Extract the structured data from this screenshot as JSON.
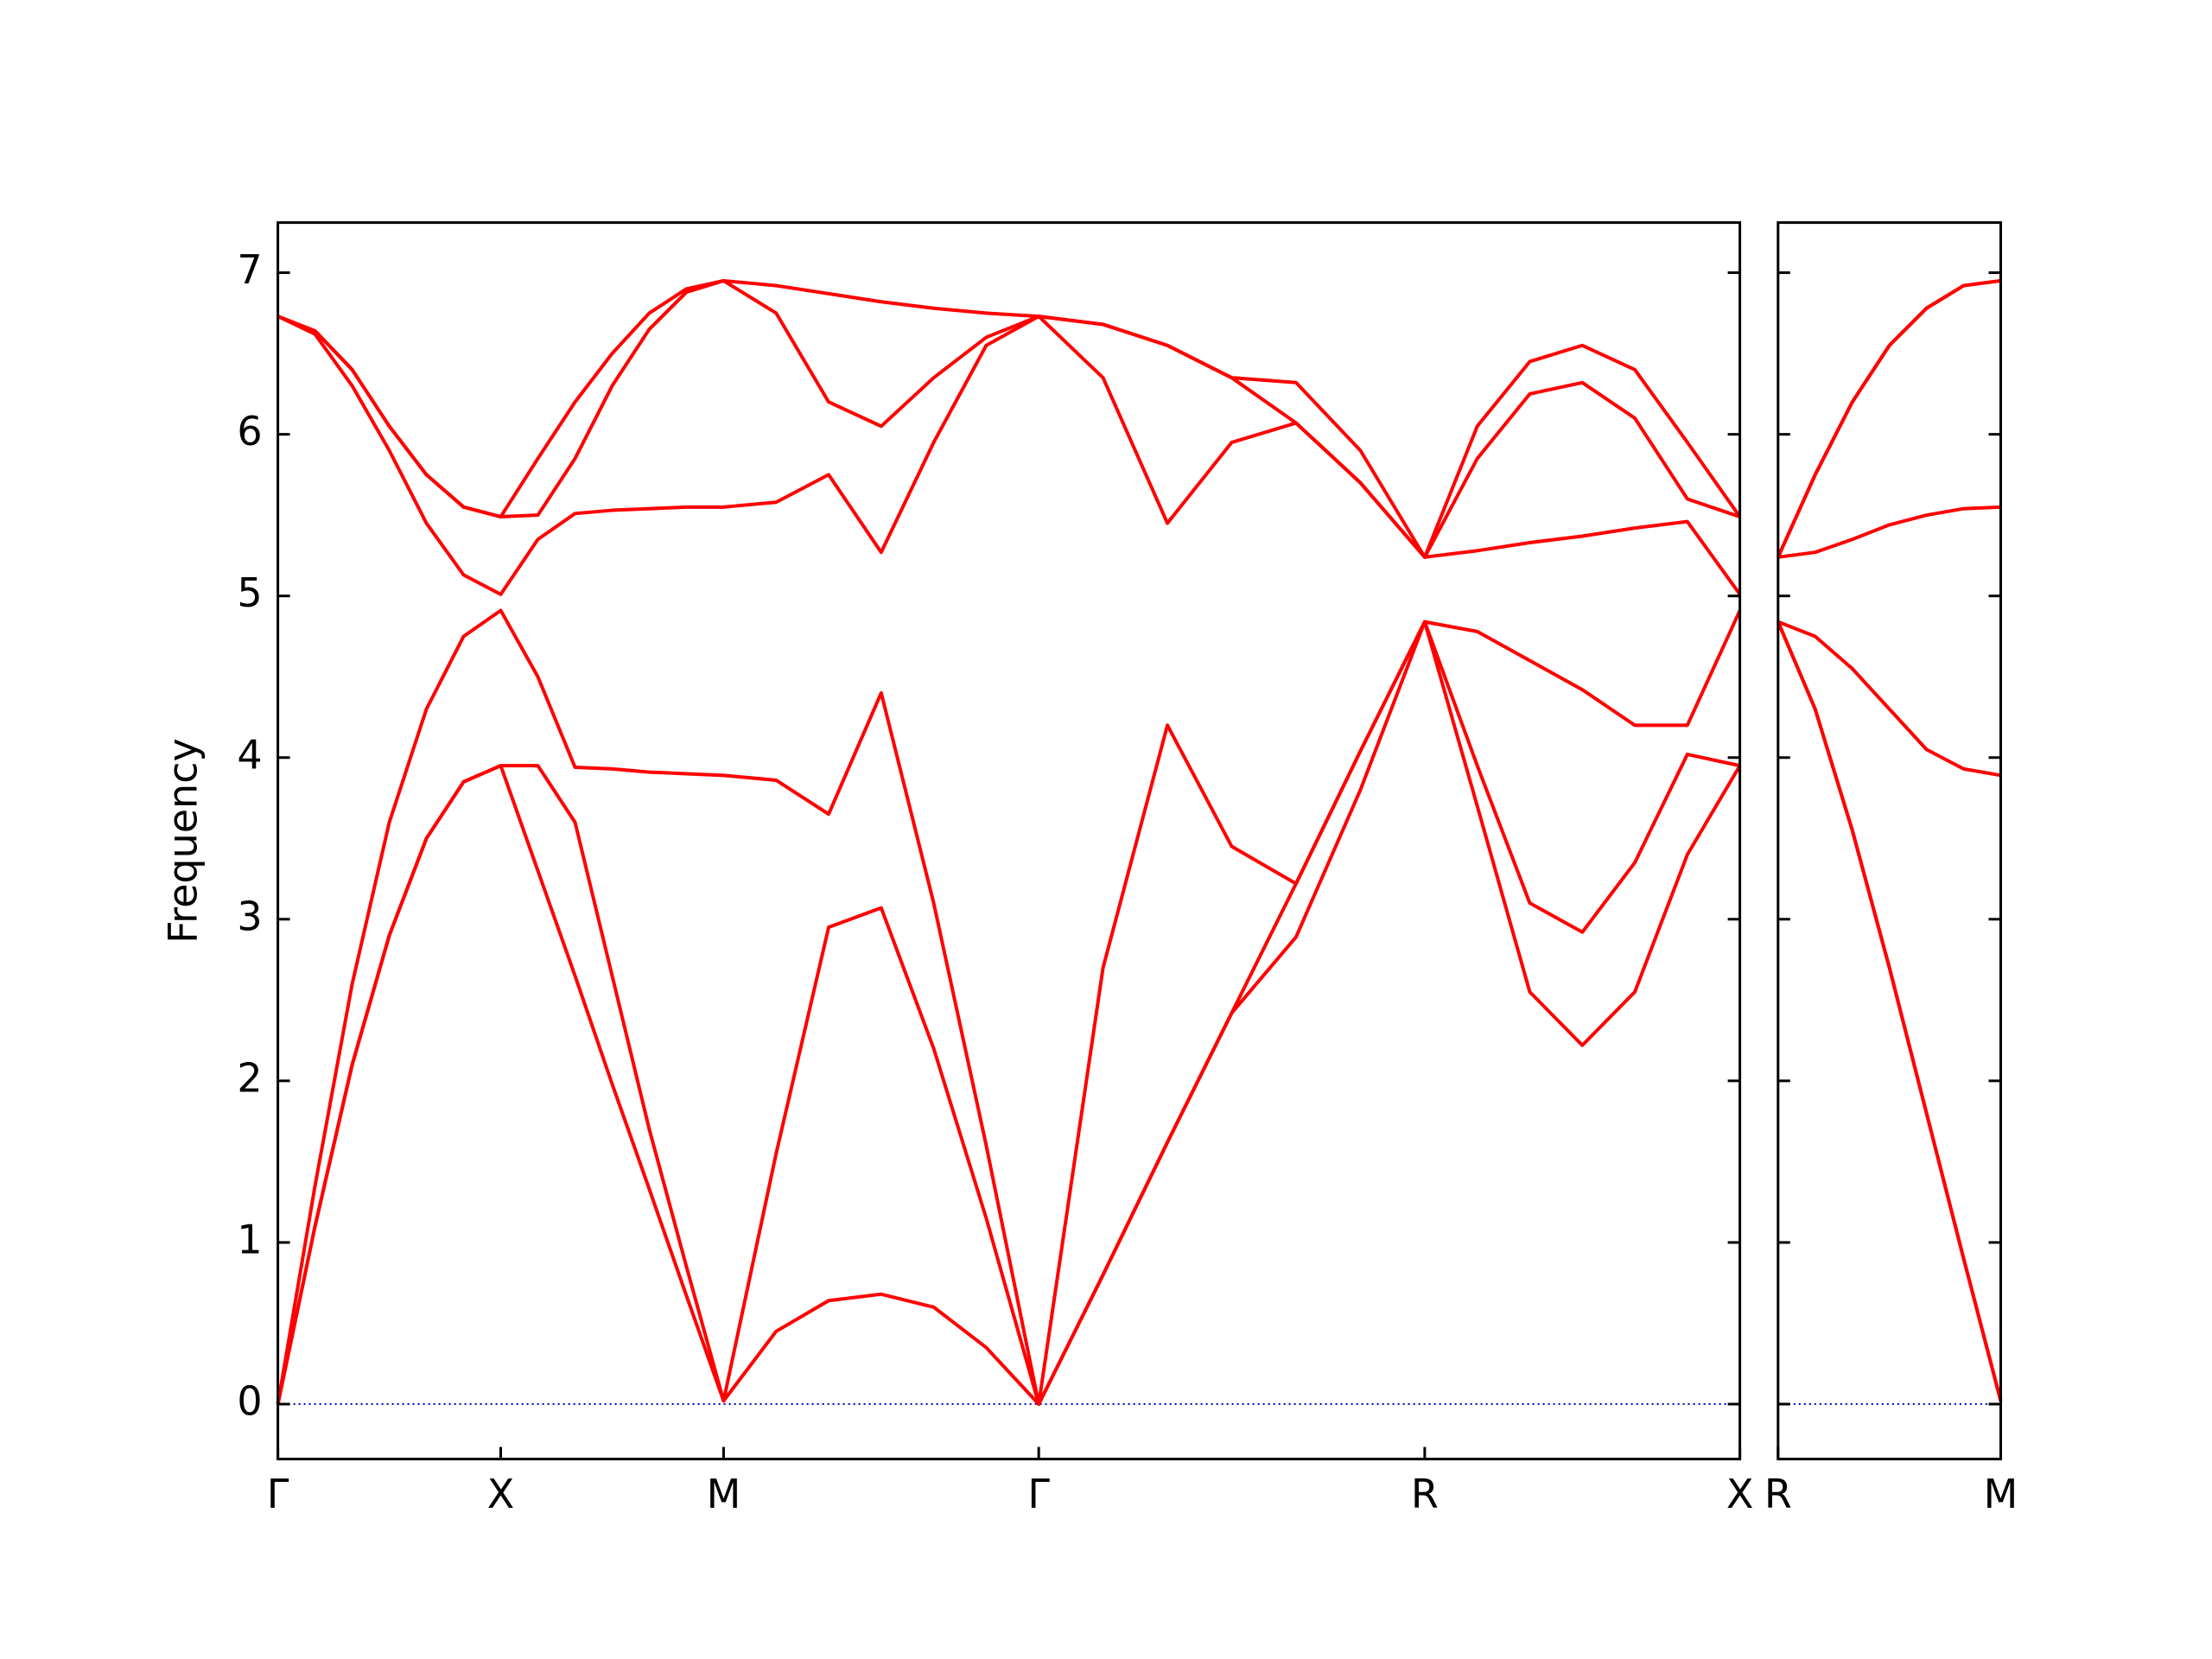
{
  "chart_data": [
    {
      "type": "line",
      "ylabel": "Frequency",
      "x": [
        0,
        0.0833,
        0.1667,
        0.25,
        0.3333,
        0.4167,
        0.5,
        0.5833,
        0.6667,
        0.75,
        0.8333,
        0.9167,
        1.0,
        1.1179,
        1.2357,
        1.3536,
        1.4714,
        1.5893,
        1.7071,
        1.8514,
        1.9958,
        2.1401,
        2.2844,
        2.4288,
        2.5731,
        2.691,
        2.8088,
        2.9267,
        3.0445,
        3.1624,
        3.2802
      ],
      "series": [
        {
          "color": "#ff0000",
          "values": [
            0,
            1.1,
            2.1,
            2.9,
            3.5,
            3.85,
            3.95,
            3.3,
            2.65,
            1.98,
            1.33,
            0.67,
            0.02,
            0.45,
            0.64,
            0.68,
            0.6,
            0.35,
            0,
            0.8,
            1.62,
            2.42,
            2.89,
            3.8,
            4.84,
            3.7,
            2.55,
            2.22,
            2.55,
            3.4,
            3.95
          ]
        },
        {
          "color": "#ff0000",
          "values": [
            0,
            1.1,
            2.1,
            2.9,
            3.5,
            3.85,
            3.95,
            3.95,
            3.6,
            2.65,
            1.7,
            0.85,
            0.02,
            1.55,
            2.95,
            3.07,
            2.2,
            1.15,
            0,
            0.8,
            1.62,
            2.42,
            3.22,
            4.04,
            4.84,
            3.95,
            3.1,
            2.92,
            3.35,
            4.02,
            3.95
          ]
        },
        {
          "color": "#ff0000",
          "values": [
            0,
            1.35,
            2.6,
            3.6,
            4.3,
            4.75,
            4.91,
            4.5,
            3.94,
            3.93,
            3.91,
            3.9,
            3.89,
            3.86,
            3.65,
            4.4,
            3.1,
            1.6,
            0,
            2.7,
            4.2,
            3.45,
            3.22,
            4.04,
            4.84,
            4.78,
            4.6,
            4.42,
            4.2,
            4.2,
            4.91
          ]
        },
        {
          "color": "#ff0000",
          "values": [
            6.73,
            6.62,
            6.3,
            5.9,
            5.45,
            5.13,
            5.01,
            5.35,
            5.51,
            5.53,
            5.54,
            5.55,
            5.55,
            5.58,
            5.75,
            5.27,
            5.95,
            6.55,
            6.73,
            6.35,
            5.45,
            5.95,
            6.07,
            5.7,
            5.24,
            5.28,
            5.33,
            5.37,
            5.42,
            5.46,
            5.01
          ]
        },
        {
          "color": "#ff0000",
          "values": [
            6.73,
            6.64,
            6.4,
            6.05,
            5.75,
            5.55,
            5.49,
            5.5,
            5.85,
            6.3,
            6.65,
            6.88,
            6.95,
            6.75,
            6.2,
            6.05,
            6.35,
            6.6,
            6.73,
            6.68,
            6.55,
            6.35,
            6.07,
            5.7,
            5.24,
            5.85,
            6.25,
            6.32,
            6.1,
            5.6,
            5.49
          ]
        },
        {
          "color": "#ff0000",
          "values": [
            6.73,
            6.64,
            6.4,
            6.05,
            5.75,
            5.55,
            5.49,
            5.85,
            6.2,
            6.5,
            6.75,
            6.9,
            6.95,
            6.92,
            6.87,
            6.82,
            6.78,
            6.75,
            6.73,
            6.68,
            6.55,
            6.35,
            6.32,
            5.9,
            5.24,
            6.05,
            6.45,
            6.55,
            6.4,
            5.95,
            5.49
          ]
        }
      ],
      "xlim": [
        0,
        3.2802
      ],
      "xticks": [
        {
          "value": 0,
          "label": "Γ"
        },
        {
          "value": 0.5,
          "label": "X"
        },
        {
          "value": 1.0,
          "label": "M"
        },
        {
          "value": 1.7071,
          "label": "Γ"
        },
        {
          "value": 2.5731,
          "label": "R"
        },
        {
          "value": 3.2802,
          "label": "X"
        }
      ],
      "ylim": [
        -0.34,
        7.31
      ],
      "yticks": [
        0,
        1,
        2,
        3,
        4,
        5,
        6,
        7
      ],
      "hline": 0,
      "hline_color": "#0000cc"
    },
    {
      "type": "line",
      "x": [
        0,
        0.0833,
        0.1667,
        0.25,
        0.3333,
        0.4167,
        0.5
      ],
      "series": [
        {
          "color": "#ff0000",
          "values": [
            4.84,
            4.3,
            3.55,
            2.7,
            1.8,
            0.9,
            0.02
          ]
        },
        {
          "color": "#ff0000",
          "values": [
            4.84,
            4.3,
            3.55,
            2.7,
            1.8,
            0.9,
            0.02
          ]
        },
        {
          "color": "#ff0000",
          "values": [
            4.84,
            4.75,
            4.55,
            4.3,
            4.05,
            3.93,
            3.89
          ]
        },
        {
          "color": "#ff0000",
          "values": [
            5.24,
            5.27,
            5.35,
            5.44,
            5.5,
            5.54,
            5.55
          ]
        },
        {
          "color": "#ff0000",
          "values": [
            5.24,
            5.75,
            6.2,
            6.55,
            6.78,
            6.92,
            6.95
          ]
        },
        {
          "color": "#ff0000",
          "values": [
            5.24,
            5.75,
            6.2,
            6.55,
            6.78,
            6.92,
            6.95
          ]
        }
      ],
      "xlim": [
        0,
        0.5
      ],
      "xticks": [
        {
          "value": 0,
          "label": "R"
        },
        {
          "value": 0.5,
          "label": "M"
        }
      ],
      "ylim": [
        -0.34,
        7.31
      ],
      "yticks": [
        0,
        1,
        2,
        3,
        4,
        5,
        6,
        7
      ],
      "ytick_labels": false,
      "hline": 0,
      "hline_color": "#0000cc"
    }
  ]
}
